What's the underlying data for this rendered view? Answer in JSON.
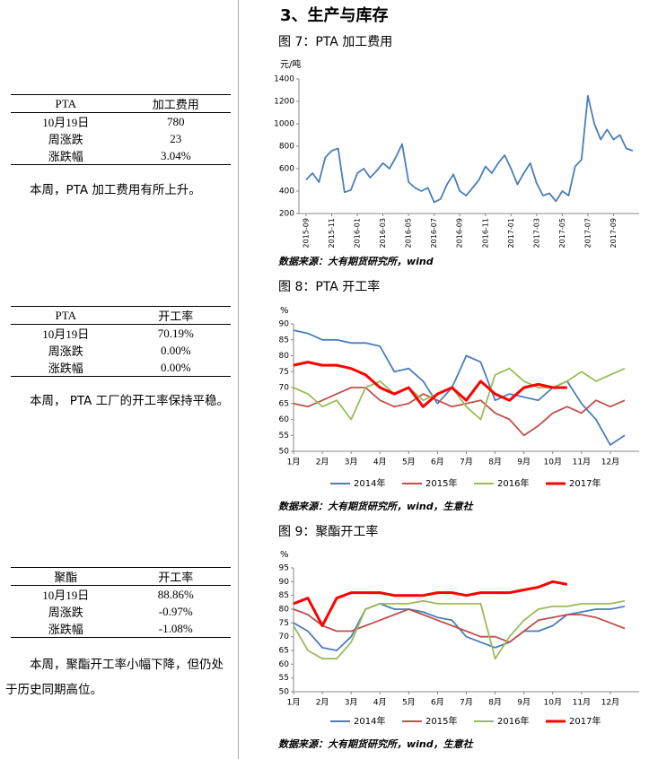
{
  "heading": "3、生产与库存",
  "tables": [
    {
      "header": [
        "PTA",
        "加工费用"
      ],
      "rows": [
        [
          "10月19日",
          "780"
        ],
        [
          "周涨跌",
          "23"
        ],
        [
          "涨跌幅",
          "3.04%"
        ]
      ],
      "note": "本周，PTA 加工费用有所上升。"
    },
    {
      "header": [
        "PTA",
        "开工率"
      ],
      "rows": [
        [
          "10月19日",
          "70.19%"
        ],
        [
          "周涨跌",
          "0.00%"
        ],
        [
          "涨跌幅",
          "0.00%"
        ]
      ],
      "note": "本周， PTA 工厂的开工率保持平稳。"
    },
    {
      "header": [
        "聚酯",
        "开工率"
      ],
      "rows": [
        [
          "10月19日",
          "88.86%"
        ],
        [
          "周涨跌",
          "-0.97%"
        ],
        [
          "涨跌幅",
          "-1.08%"
        ]
      ],
      "note": "本周，聚酯开工率小幅下降，但仍处于历史同期高位。"
    }
  ],
  "chart_data": [
    {
      "type": "line",
      "title": "图 7：PTA 加工费用",
      "unit_label": "元/吨",
      "source": "数据来源：大有期货研究所，wind",
      "categories": [
        "2015-09",
        null,
        null,
        null,
        "2015-11",
        null,
        null,
        null,
        "2016-01",
        null,
        null,
        null,
        "2016-03",
        null,
        null,
        null,
        "2016-05",
        null,
        null,
        null,
        "2016-07",
        null,
        null,
        null,
        "2016-09",
        null,
        null,
        null,
        "2016-11",
        null,
        null,
        null,
        "2017-01",
        null,
        null,
        null,
        "2017-03",
        null,
        null,
        null,
        "2017-05",
        null,
        null,
        null,
        "2017-07",
        null,
        null,
        null,
        "2017-09",
        null,
        null,
        null
      ],
      "values": [
        500,
        560,
        480,
        700,
        760,
        780,
        390,
        410,
        560,
        600,
        520,
        580,
        650,
        600,
        700,
        820,
        480,
        430,
        400,
        430,
        300,
        330,
        460,
        550,
        400,
        360,
        430,
        500,
        620,
        560,
        650,
        720,
        600,
        460,
        560,
        650,
        470,
        360,
        380,
        310,
        400,
        360,
        620,
        680,
        1250,
        1000,
        860,
        950,
        860,
        900,
        780,
        760
      ],
      "color": "#4a7ebb",
      "ylim": [
        200,
        1400
      ],
      "yticks": [
        200,
        400,
        600,
        800,
        1000,
        1200,
        1400
      ]
    },
    {
      "type": "line",
      "title": "图 8：PTA 开工率",
      "unit_label": "%",
      "source": "数据来源：大有期货研究所，wind，生意社",
      "categories": [
        "1月",
        null,
        "2月",
        null,
        "3月",
        null,
        "4月",
        null,
        "5月",
        null,
        "6月",
        null,
        "7月",
        null,
        "8月",
        null,
        "9月",
        null,
        "10月",
        null,
        "11月",
        null,
        "12月",
        null
      ],
      "series": [
        {
          "name": "2014年",
          "color": "#4a7ebb",
          "values": [
            88,
            87,
            85,
            85,
            84,
            84,
            83,
            75,
            76,
            72,
            65,
            70,
            80,
            78,
            66,
            68,
            67,
            66,
            70,
            72,
            65,
            60,
            52,
            55
          ]
        },
        {
          "name": "2015年",
          "color": "#c0504d",
          "values": [
            65,
            64,
            66,
            68,
            70,
            70,
            66,
            64,
            65,
            68,
            66,
            64,
            65,
            66,
            62,
            60,
            55,
            58,
            62,
            64,
            62,
            66,
            64,
            66
          ]
        },
        {
          "name": "2016年",
          "color": "#9bbb59",
          "values": [
            70,
            68,
            64,
            66,
            60,
            70,
            72,
            68,
            70,
            66,
            68,
            70,
            64,
            60,
            74,
            76,
            72,
            70,
            70,
            72,
            75,
            72,
            74,
            76
          ]
        },
        {
          "name": "2017年",
          "color": "#ff0000",
          "values": [
            77,
            78,
            77,
            77,
            76,
            74,
            70,
            68,
            70,
            64,
            68,
            70,
            66,
            72,
            68,
            66,
            70,
            71,
            70,
            70,
            null,
            null,
            null,
            null
          ]
        }
      ],
      "ylim": [
        50,
        90
      ],
      "yticks": [
        50,
        55,
        60,
        65,
        70,
        75,
        80,
        85,
        90
      ],
      "legend": "bottom"
    },
    {
      "type": "line",
      "title": "图 9：聚酯开工率",
      "unit_label": "%",
      "source": "数据来源：大有期货研究所，wind，生意社",
      "categories": [
        "1月",
        null,
        "2月",
        null,
        "3月",
        null,
        "4月",
        null,
        "5月",
        null,
        "6月",
        null,
        "7月",
        null,
        "8月",
        null,
        "9月",
        null,
        "10月",
        null,
        "11月",
        null,
        "12月",
        null
      ],
      "series": [
        {
          "name": "2014年",
          "color": "#4a7ebb",
          "values": [
            75,
            72,
            66,
            65,
            70,
            80,
            82,
            80,
            80,
            79,
            77,
            76,
            70,
            68,
            66,
            68,
            72,
            72,
            74,
            78,
            79,
            80,
            80,
            81
          ]
        },
        {
          "name": "2015年",
          "color": "#c0504d",
          "values": [
            80,
            78,
            74,
            72,
            72,
            74,
            76,
            78,
            80,
            78,
            76,
            74,
            72,
            70,
            70,
            68,
            72,
            76,
            77,
            78,
            78,
            77,
            75,
            73
          ]
        },
        {
          "name": "2016年",
          "color": "#9bbb59",
          "values": [
            74,
            65,
            62,
            62,
            68,
            80,
            82,
            82,
            82,
            83,
            82,
            82,
            82,
            82,
            62,
            70,
            76,
            80,
            81,
            81,
            82,
            82,
            82,
            83
          ]
        },
        {
          "name": "2017年",
          "color": "#ff0000",
          "values": [
            82,
            84,
            74,
            84,
            86,
            86,
            86,
            85,
            85,
            85,
            86,
            86,
            85,
            86,
            86,
            86,
            87,
            88,
            90,
            89,
            null,
            null,
            null,
            null
          ]
        }
      ],
      "ylim": [
        50,
        95
      ],
      "yticks": [
        50,
        55,
        60,
        65,
        70,
        75,
        80,
        85,
        90,
        95
      ],
      "legend": "bottom"
    }
  ]
}
